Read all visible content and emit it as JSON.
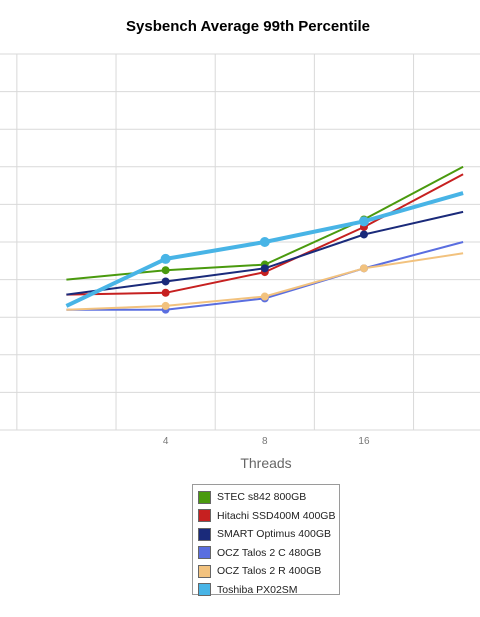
{
  "chart_data": {
    "type": "line",
    "title": "Sysbench Average 99th Percentile",
    "xlabel": "Threads",
    "ylabel": "",
    "x_tick_labels": [
      "4",
      "8",
      "16"
    ],
    "x_plot_positions": [
      1,
      2,
      3,
      4,
      5
    ],
    "x_visible_range": [
      0.33,
      5.17
    ],
    "ylim": [
      0,
      10
    ],
    "grid": true,
    "legend_position": "bottom",
    "series": [
      {
        "name": "STEC s842 800GB",
        "color": "#4a9a0e",
        "values": [
          4.0,
          4.25,
          4.4,
          5.6,
          7.0
        ]
      },
      {
        "name": "Hitachi SSD400M 400GB",
        "color": "#c62020",
        "values": [
          3.6,
          3.65,
          4.2,
          5.4,
          6.8
        ]
      },
      {
        "name": "SMART Optimus 400GB",
        "color": "#1a2a7a",
        "values": [
          3.6,
          3.95,
          4.3,
          5.2,
          5.8
        ]
      },
      {
        "name": "OCZ Talos 2 C 480GB",
        "color": "#5a6ee0",
        "values": [
          3.2,
          3.2,
          3.5,
          4.3,
          5.0
        ]
      },
      {
        "name": "OCZ Talos 2 R 400GB",
        "color": "#f2c27e",
        "values": [
          3.2,
          3.3,
          3.55,
          4.3,
          4.7
        ]
      },
      {
        "name": "Toshiba PX02SM",
        "color": "#48b4e6",
        "values": [
          3.3,
          4.55,
          5.0,
          5.55,
          6.3
        ]
      }
    ]
  }
}
